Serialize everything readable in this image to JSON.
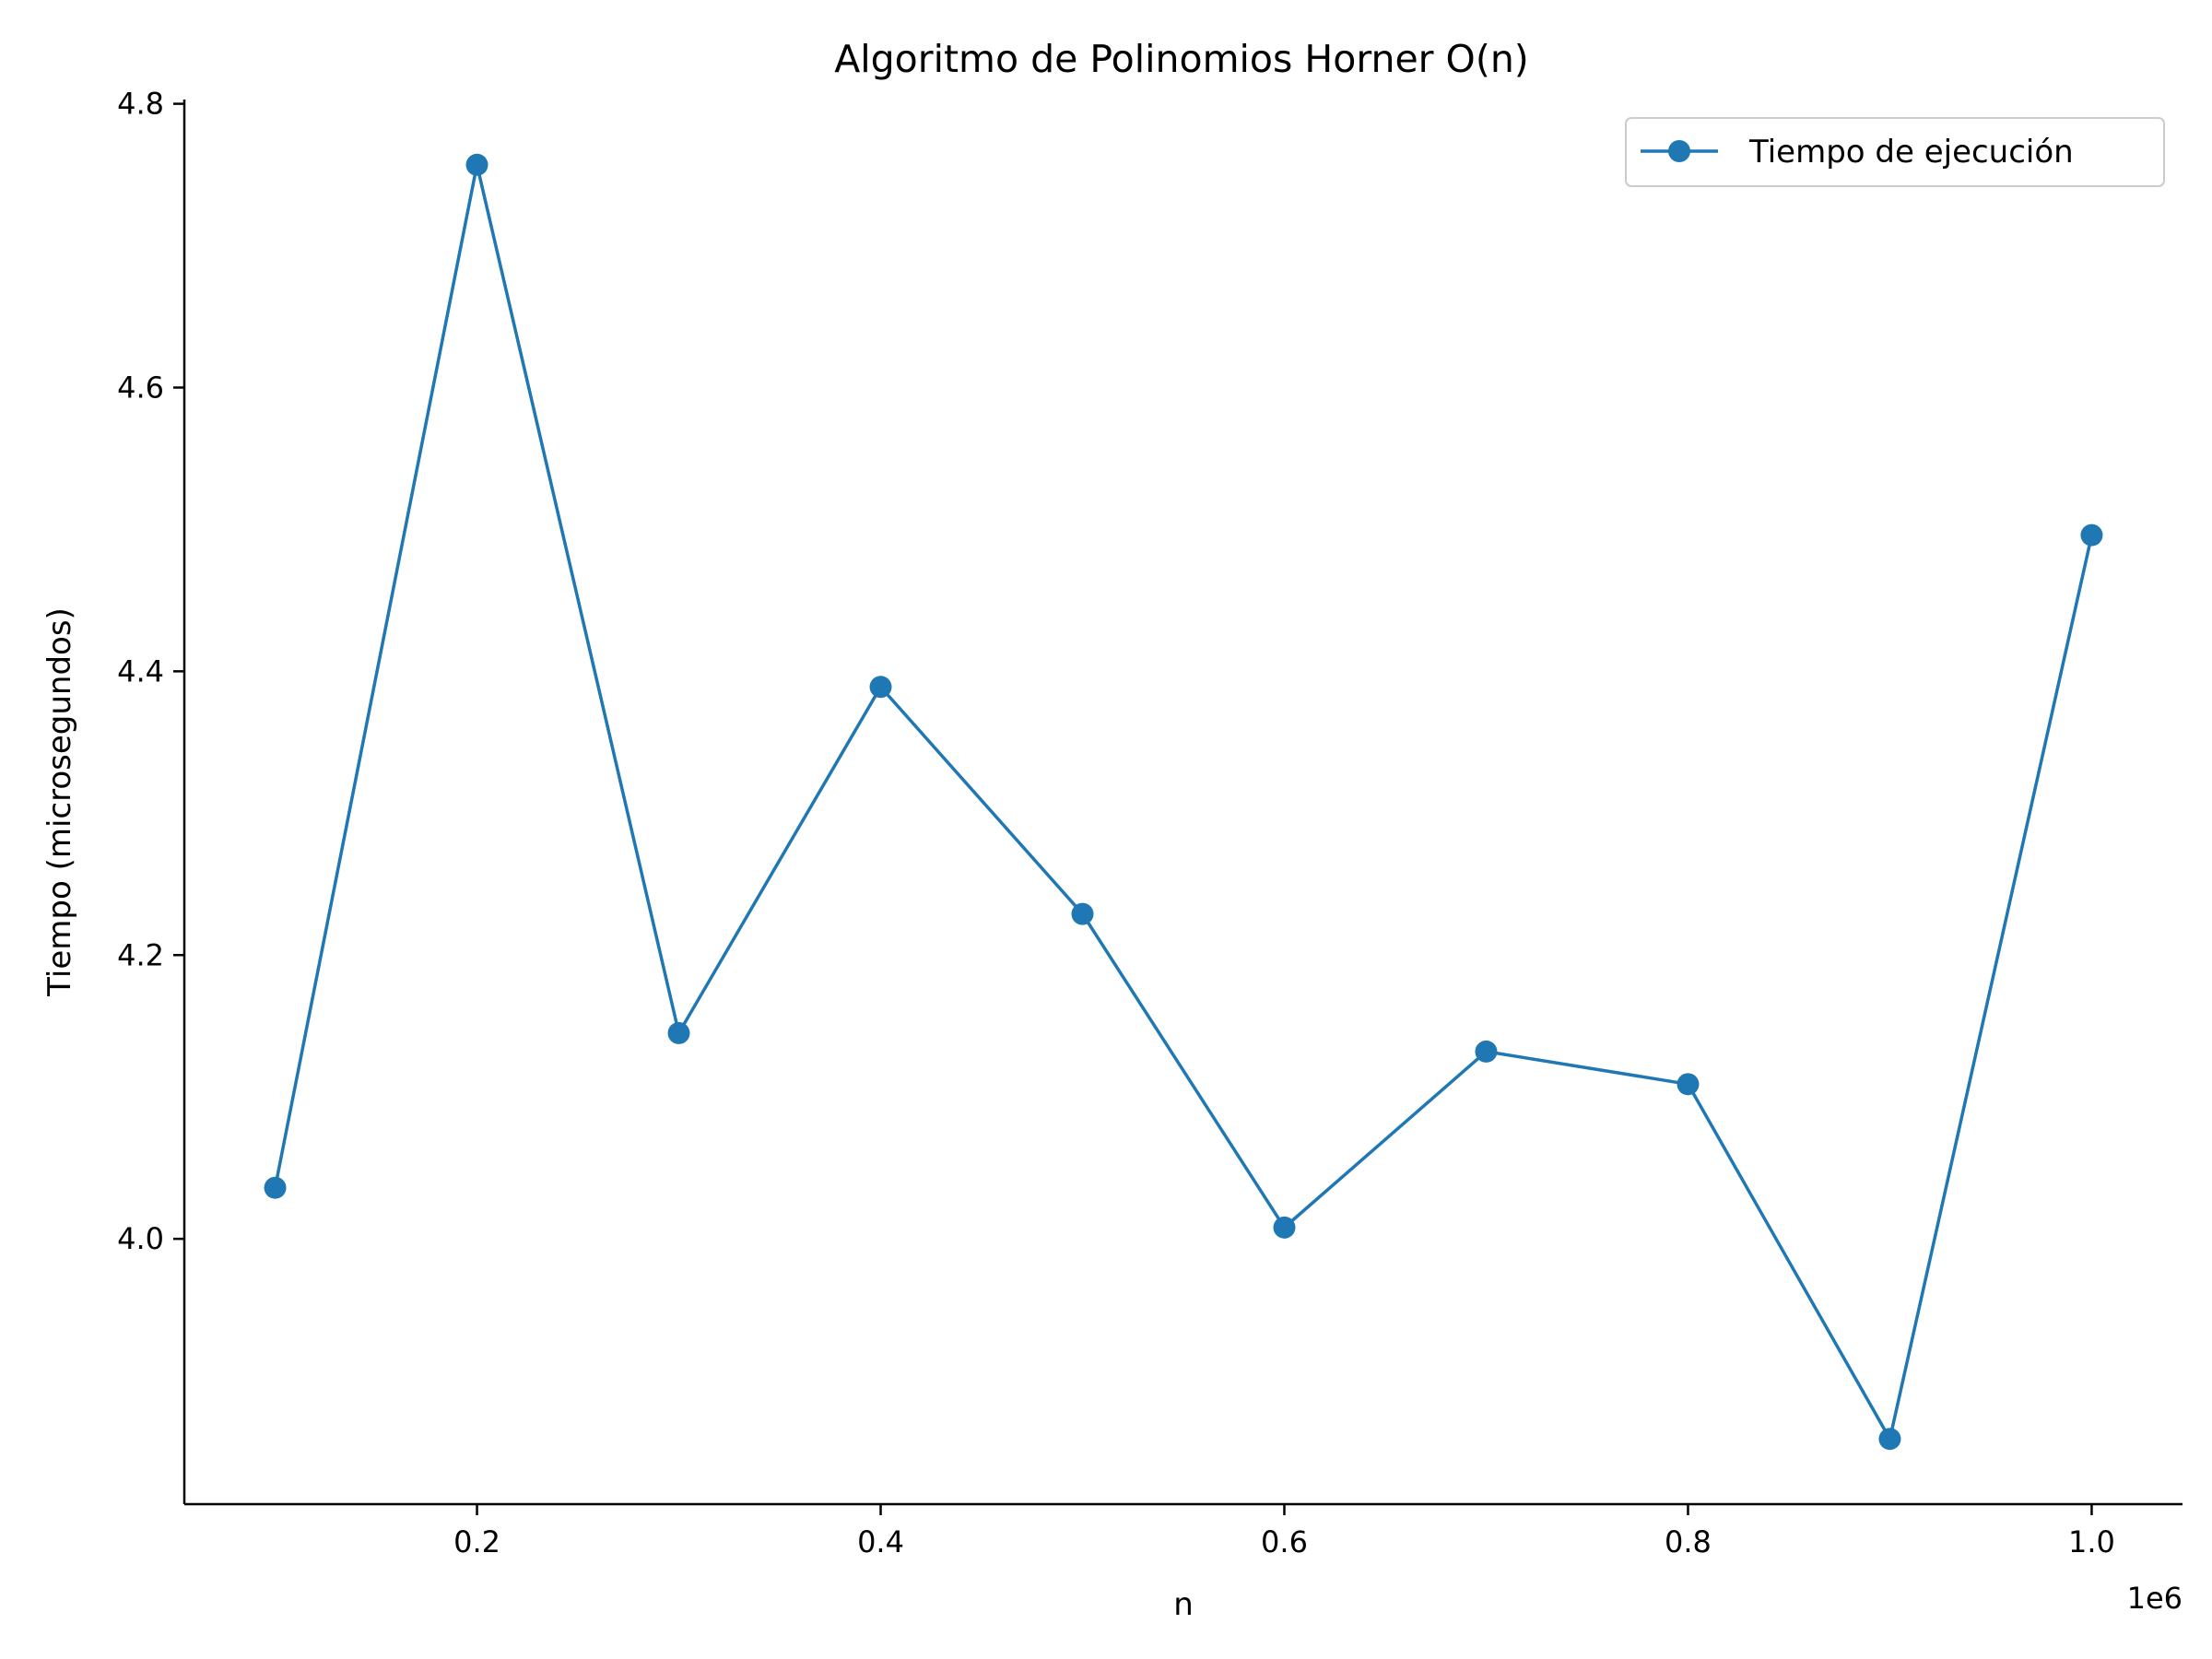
{
  "chart_data": {
    "type": "line",
    "title": "Algoritmo de Polinomios Horner O(n)",
    "xlabel": "n",
    "ylabel": "Tiempo (microsegundos)",
    "x_offset_label": "1e6",
    "xlim": [
      55000,
      1045000
    ],
    "ylim": [
      3.813,
      4.803
    ],
    "x_ticks": [
      200000,
      400000,
      600000,
      800000,
      1000000
    ],
    "x_tick_labels": [
      "0.2",
      "0.4",
      "0.6",
      "0.8",
      "1.0"
    ],
    "y_ticks": [
      4.0,
      4.2,
      4.4,
      4.6,
      4.8
    ],
    "y_tick_labels": [
      "4.0",
      "4.2",
      "4.4",
      "4.6",
      "4.8"
    ],
    "grid": false,
    "legend_position": "top-right",
    "series": [
      {
        "name": "Tiempo de ejecución",
        "color": "#1f77b4",
        "marker": "circle",
        "x": [
          100000,
          200000,
          300000,
          400000,
          500000,
          600000,
          700000,
          800000,
          900000,
          1000000
        ],
        "y": [
          4.036,
          4.757,
          4.145,
          4.389,
          4.229,
          4.008,
          4.132,
          4.109,
          3.859,
          4.496
        ]
      }
    ]
  }
}
